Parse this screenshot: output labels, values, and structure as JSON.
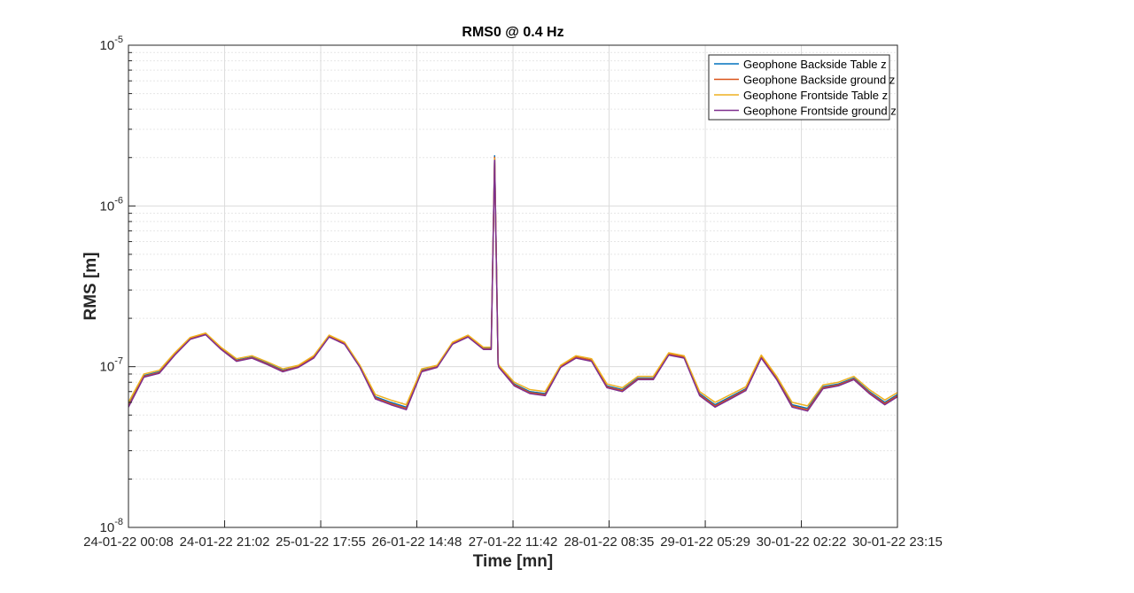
{
  "chart_data": {
    "type": "line",
    "title": "RMS0 @ 0.4 Hz",
    "xlabel": "Time [mn]",
    "ylabel": "RMS [m]",
    "yscale": "log",
    "ylim": [
      1e-08,
      1e-05
    ],
    "xlim": [
      "24-01-22 00:08",
      "30-01-22 23:15"
    ],
    "grid": true,
    "minor_grid": true,
    "legend_position": "top-right",
    "x_tick_labels": [
      "24-01-22 00:08",
      "24-01-22 21:02",
      "25-01-22 17:55",
      "26-01-22 14:48",
      "27-01-22 11:42",
      "28-01-22 08:35",
      "29-01-22 05:29",
      "30-01-22 02:22",
      "30-01-22 23:15"
    ],
    "y_tick_labels": [
      {
        "base": "10",
        "exp": "-8",
        "value": 1e-08
      },
      {
        "base": "10",
        "exp": "-7",
        "value": 1e-07
      },
      {
        "base": "10",
        "exp": "-6",
        "value": 1e-06
      },
      {
        "base": "10",
        "exp": "-5",
        "value": 1e-05
      }
    ],
    "x": [
      "24-01-22 00:08",
      "24-01-22 03:29",
      "24-01-22 06:50",
      "24-01-22 10:12",
      "24-01-22 13:33",
      "24-01-22 16:54",
      "24-01-22 20:15",
      "24-01-22 23:37",
      "25-01-22 02:58",
      "25-01-22 06:19",
      "25-01-22 09:40",
      "25-01-22 13:02",
      "25-01-22 16:23",
      "25-01-22 19:44",
      "25-01-22 23:05",
      "26-01-22 02:27",
      "26-01-22 05:48",
      "26-01-22 09:09",
      "26-01-22 12:31",
      "26-01-22 15:52",
      "26-01-22 19:13",
      "26-01-22 22:34",
      "27-01-22 01:56",
      "27-01-22 05:17",
      "27-01-22 08:38",
      "27-01-22 11:59",
      "27-01-22 15:21",
      "27-01-22 18:42",
      "27-01-22 22:03",
      "28-01-22 01:24",
      "28-01-22 04:46",
      "28-01-22 08:07",
      "28-01-22 11:28",
      "28-01-22 14:50",
      "28-01-22 18:11",
      "28-01-22 21:32",
      "29-01-22 00:53",
      "29-01-22 04:15",
      "29-01-22 07:36",
      "29-01-22 10:57",
      "29-01-22 14:18",
      "29-01-22 17:40",
      "29-01-22 21:01",
      "30-01-22 00:22",
      "30-01-22 03:43",
      "30-01-22 07:05",
      "30-01-22 10:26",
      "30-01-22 13:47",
      "30-01-22 17:08",
      "30-01-22 20:30",
      "30-01-22 23:15"
    ],
    "series": [
      {
        "name": "Geophone Backside Table z",
        "color": "#0072BD",
        "values": [
          5.8e-08,
          8.8e-08,
          9.3e-08,
          1.2e-07,
          1.5e-07,
          1.6e-07,
          1.3e-07,
          1.1e-07,
          1.15e-07,
          1.05e-07,
          9.5e-08,
          1e-07,
          1.15e-07,
          1.55e-07,
          1.4e-07,
          1e-07,
          6.5e-08,
          6e-08,
          5.6e-08,
          9.5e-08,
          1e-07,
          1.4e-07,
          1.55e-07,
          1.3e-07,
          1e-07,
          7.8e-08,
          7e-08,
          6.8e-08,
          1e-07,
          1.15e-07,
          1.1e-07,
          7.6e-08,
          7.2e-08,
          8.5e-08,
          8.5e-08,
          1.2e-07,
          1.15e-07,
          6.8e-08,
          5.8e-08,
          6.5e-08,
          7.3e-08,
          1.15e-07,
          8.5e-08,
          5.8e-08,
          5.5e-08,
          7.5e-08,
          7.8e-08,
          8.5e-08,
          7e-08,
          6e-08,
          6.7e-08
        ]
      },
      {
        "name": "Geophone Backside ground z",
        "color": "#D95319",
        "values": [
          5.7e-08,
          8.7e-08,
          9.2e-08,
          1.19e-07,
          1.5e-07,
          1.6e-07,
          1.29e-07,
          1.09e-07,
          1.14e-07,
          1.04e-07,
          9.4e-08,
          1e-07,
          1.15e-07,
          1.55e-07,
          1.4e-07,
          1e-07,
          6.4e-08,
          5.9e-08,
          5.5e-08,
          9.4e-08,
          1e-07,
          1.4e-07,
          1.55e-07,
          1.29e-07,
          1e-07,
          7.7e-08,
          6.9e-08,
          6.7e-08,
          1e-07,
          1.15e-07,
          1.1e-07,
          7.5e-08,
          7.1e-08,
          8.4e-08,
          8.4e-08,
          1.2e-07,
          1.15e-07,
          6.7e-08,
          5.7e-08,
          6.4e-08,
          7.2e-08,
          1.16e-07,
          8.4e-08,
          5.7e-08,
          5.4e-08,
          7.4e-08,
          7.7e-08,
          8.4e-08,
          6.9e-08,
          5.9e-08,
          6.6e-08
        ]
      },
      {
        "name": "Geophone Frontside Table z",
        "color": "#EDB120",
        "values": [
          6e-08,
          9e-08,
          9.5e-08,
          1.22e-07,
          1.52e-07,
          1.62e-07,
          1.32e-07,
          1.12e-07,
          1.17e-07,
          1.07e-07,
          9.7e-08,
          1.02e-07,
          1.17e-07,
          1.57e-07,
          1.42e-07,
          1.02e-07,
          6.7e-08,
          6.2e-08,
          5.8e-08,
          9.7e-08,
          1.02e-07,
          1.42e-07,
          1.57e-07,
          1.32e-07,
          1.02e-07,
          8e-08,
          7.2e-08,
          7e-08,
          1.02e-07,
          1.17e-07,
          1.12e-07,
          7.8e-08,
          7.4e-08,
          8.7e-08,
          8.7e-08,
          1.22e-07,
          1.17e-07,
          7e-08,
          6e-08,
          6.7e-08,
          7.5e-08,
          1.18e-07,
          8.7e-08,
          6e-08,
          5.7e-08,
          7.7e-08,
          8e-08,
          8.7e-08,
          7.2e-08,
          6.2e-08,
          6.9e-08
        ]
      },
      {
        "name": "Geophone Frontside ground z",
        "color": "#7E2F8E",
        "values": [
          5.6e-08,
          8.6e-08,
          9.1e-08,
          1.18e-07,
          1.48e-07,
          1.58e-07,
          1.28e-07,
          1.08e-07,
          1.13e-07,
          1.03e-07,
          9.3e-08,
          9.9e-08,
          1.13e-07,
          1.53e-07,
          1.38e-07,
          9.9e-08,
          6.3e-08,
          5.8e-08,
          5.4e-08,
          9.3e-08,
          9.9e-08,
          1.38e-07,
          1.53e-07,
          1.28e-07,
          9.9e-08,
          7.6e-08,
          6.8e-08,
          6.6e-08,
          9.9e-08,
          1.13e-07,
          1.08e-07,
          7.4e-08,
          7e-08,
          8.3e-08,
          8.3e-08,
          1.18e-07,
          1.13e-07,
          6.6e-08,
          5.6e-08,
          6.3e-08,
          7.1e-08,
          1.13e-07,
          8.3e-08,
          5.6e-08,
          5.3e-08,
          7.3e-08,
          7.6e-08,
          8.3e-08,
          6.8e-08,
          5.8e-08,
          6.5e-08
        ]
      }
    ],
    "spike": {
      "x": "27-01-22 07:42",
      "value": 2.05e-06
    }
  }
}
